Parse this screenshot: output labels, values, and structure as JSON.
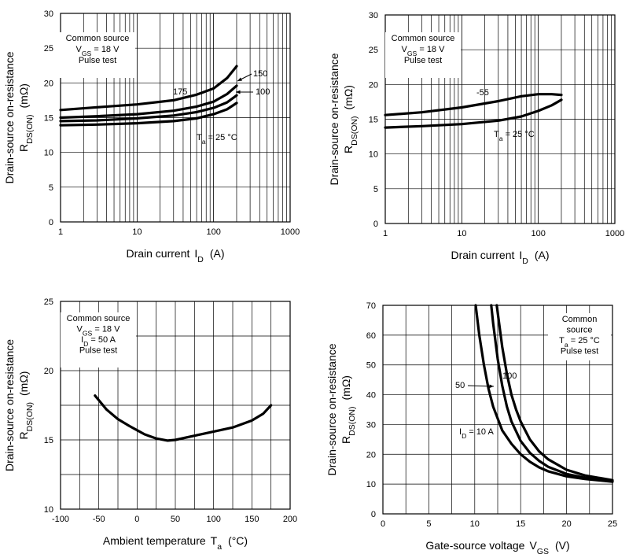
{
  "chart_data": [
    {
      "type": "line",
      "xscale": "log",
      "xlim": [
        1,
        1000
      ],
      "ylim": [
        0,
        30
      ],
      "x_ticks": [
        "1",
        "10",
        "100",
        "1000"
      ],
      "y_ticks": [
        "0",
        "5",
        "10",
        "15",
        "20",
        "25",
        "30"
      ],
      "xlabel": "Drain current",
      "xlabel_sym": "I",
      "xlabel_sub": "D",
      "xlabel_unit": "(A)",
      "ylabel": "Drain-source on-resistance",
      "ylabel_sym": "R",
      "ylabel_sub": "DS(ON)",
      "ylabel_unit": "(mΩ)",
      "conditions": [
        "Common source",
        "V_GS = 18 V",
        "Pulse test"
      ],
      "cond_lines": [
        {
          "main": "Common source",
          "sub": "",
          "rest": ""
        },
        {
          "main": "V",
          "sub": "GS",
          "rest": " = 18 V"
        },
        {
          "main": "Pulse test",
          "sub": "",
          "rest": ""
        }
      ],
      "series": [
        {
          "name": "175",
          "x": [
            1,
            3,
            10,
            30,
            60,
            100,
            150,
            200
          ],
          "y": [
            16.1,
            16.5,
            16.9,
            17.5,
            18.3,
            19.2,
            20.7,
            22.4
          ]
        },
        {
          "name": "150",
          "x": [
            1,
            3,
            10,
            30,
            60,
            100,
            150,
            200
          ],
          "y": [
            15.0,
            15.2,
            15.5,
            16.0,
            16.6,
            17.3,
            18.4,
            19.6
          ]
        },
        {
          "name": "100",
          "x": [
            1,
            3,
            10,
            30,
            60,
            100,
            150,
            200
          ],
          "y": [
            14.5,
            14.6,
            14.9,
            15.3,
            15.8,
            16.4,
            17.2,
            18.2
          ]
        },
        {
          "name": "T_a = 25 °C",
          "x": [
            1,
            3,
            10,
            30,
            60,
            100,
            150,
            200
          ],
          "y": [
            13.9,
            14.0,
            14.2,
            14.5,
            14.9,
            15.5,
            16.2,
            17.1
          ]
        }
      ],
      "labels": [
        {
          "text": "175",
          "sub": "",
          "rest": ""
        },
        {
          "text": "150",
          "sub": "",
          "rest": ""
        },
        {
          "text": "100",
          "sub": "",
          "rest": ""
        },
        {
          "text": "T",
          "sub": "a",
          "rest": " = 25 °C"
        }
      ]
    },
    {
      "type": "line",
      "xscale": "log",
      "xlim": [
        1,
        1000
      ],
      "ylim": [
        0,
        30
      ],
      "x_ticks": [
        "1",
        "10",
        "100",
        "1000"
      ],
      "y_ticks": [
        "0",
        "5",
        "10",
        "15",
        "20",
        "25",
        "30"
      ],
      "xlabel": "Drain current",
      "xlabel_sym": "I",
      "xlabel_sub": "D",
      "xlabel_unit": "(A)",
      "ylabel": "Drain-source on-resistance",
      "ylabel_sym": "R",
      "ylabel_sub": "DS(ON)",
      "ylabel_unit": "(mΩ)",
      "conditions": [
        "Common source",
        "V_GS = 18 V",
        "Pulse test"
      ],
      "cond_lines": [
        {
          "main": "Common source",
          "sub": "",
          "rest": ""
        },
        {
          "main": "V",
          "sub": "GS",
          "rest": " = 18 V"
        },
        {
          "main": "Pulse test",
          "sub": "",
          "rest": ""
        }
      ],
      "series": [
        {
          "name": "-55",
          "x": [
            1,
            3,
            10,
            30,
            60,
            100,
            150,
            200
          ],
          "y": [
            15.6,
            16.0,
            16.7,
            17.6,
            18.3,
            18.6,
            18.6,
            18.5
          ]
        },
        {
          "name": "T_a = 25 °C",
          "x": [
            1,
            3,
            10,
            30,
            60,
            100,
            150,
            200
          ],
          "y": [
            13.8,
            14.0,
            14.3,
            14.8,
            15.4,
            16.2,
            17.0,
            17.8
          ]
        }
      ],
      "labels": [
        {
          "text": "-55",
          "sub": "",
          "rest": ""
        },
        {
          "text": "T",
          "sub": "a",
          "rest": " = 25 °C"
        }
      ]
    },
    {
      "type": "line",
      "xscale": "linear",
      "xlim": [
        -100,
        200
      ],
      "ylim": [
        10,
        25
      ],
      "x_ticks": [
        "-100",
        "-50",
        "0",
        "50",
        "100",
        "150",
        "200"
      ],
      "y_ticks": [
        "10",
        "15",
        "20",
        "25"
      ],
      "xlabel": "Ambient temperature",
      "xlabel_sym": "T",
      "xlabel_sub": "a",
      "xlabel_unit": "(°C)",
      "ylabel": "Drain-source on-resistance",
      "ylabel_sym": "R",
      "ylabel_sub": "DS(ON)",
      "ylabel_unit": "(mΩ)",
      "conditions": [
        "Common source",
        "V_GS = 18 V",
        "I_D = 50 A",
        "Pulse test"
      ],
      "cond_lines": [
        {
          "main": "Common source",
          "sub": "",
          "rest": ""
        },
        {
          "main": "V",
          "sub": "GS",
          "rest": " = 18 V"
        },
        {
          "main": "I",
          "sub": "D",
          "rest": " = 50 A"
        },
        {
          "main": "Pulse test",
          "sub": "",
          "rest": ""
        }
      ],
      "series": [
        {
          "name": "",
          "x": [
            -55,
            -40,
            -25,
            -10,
            0,
            10,
            25,
            40,
            50,
            75,
            100,
            125,
            150,
            165,
            175
          ],
          "y": [
            18.2,
            17.2,
            16.5,
            16.0,
            15.7,
            15.4,
            15.1,
            14.95,
            15.0,
            15.3,
            15.6,
            15.9,
            16.4,
            16.9,
            17.5
          ]
        }
      ],
      "labels": []
    },
    {
      "type": "line",
      "xscale": "linear",
      "xlim": [
        0,
        25
      ],
      "ylim": [
        0,
        70
      ],
      "x_ticks": [
        "0",
        "5",
        "10",
        "15",
        "20",
        "25"
      ],
      "y_ticks": [
        "0",
        "10",
        "20",
        "30",
        "40",
        "50",
        "60",
        "70"
      ],
      "xlabel": "Gate-source voltage",
      "xlabel_sym": "V",
      "xlabel_sub": "GS",
      "xlabel_unit": "(V)",
      "ylabel": "Drain-source on-resistance",
      "ylabel_sym": "R",
      "ylabel_sub": "DS(ON)",
      "ylabel_unit": "(mΩ)",
      "conditions": [
        "Common",
        "source",
        "T_a = 25 °C",
        "Pulse test"
      ],
      "cond_lines": [
        {
          "main": "Common",
          "sub": "",
          "rest": ""
        },
        {
          "main": "source",
          "sub": "",
          "rest": ""
        },
        {
          "main": "T",
          "sub": "a",
          "rest": " = 25 °C"
        },
        {
          "main": "Pulse test",
          "sub": "",
          "rest": ""
        }
      ],
      "series": [
        {
          "name": "I_D = 10 A",
          "x": [
            10.1,
            10.5,
            11,
            11.5,
            12,
            13,
            14,
            15,
            16,
            17,
            18,
            20,
            22,
            25
          ],
          "y": [
            70,
            60,
            50,
            42,
            36,
            28,
            23.5,
            20,
            17.5,
            15.6,
            14.3,
            12.6,
            11.7,
            10.8
          ]
        },
        {
          "name": "50",
          "x": [
            11.8,
            12.0,
            12.5,
            13,
            13.5,
            14,
            15,
            16,
            17,
            18,
            20,
            22,
            25
          ],
          "y": [
            70,
            64,
            52,
            43,
            36,
            31,
            24.5,
            20.5,
            17.8,
            15.8,
            13.4,
            12.1,
            11.0
          ]
        },
        {
          "name": "100",
          "x": [
            12.4,
            12.7,
            13,
            13.5,
            14,
            14.5,
            15,
            16,
            17,
            18,
            20,
            22,
            25
          ],
          "y": [
            70,
            63,
            56,
            47,
            40,
            35,
            31,
            25,
            21,
            18.3,
            14.8,
            12.9,
            11.3
          ]
        }
      ],
      "labels": [
        {
          "text": "I",
          "sub": "D",
          "rest": " = 10 A"
        },
        {
          "text": "50",
          "sub": "",
          "rest": ""
        },
        {
          "text": "100",
          "sub": "",
          "rest": ""
        }
      ]
    }
  ]
}
